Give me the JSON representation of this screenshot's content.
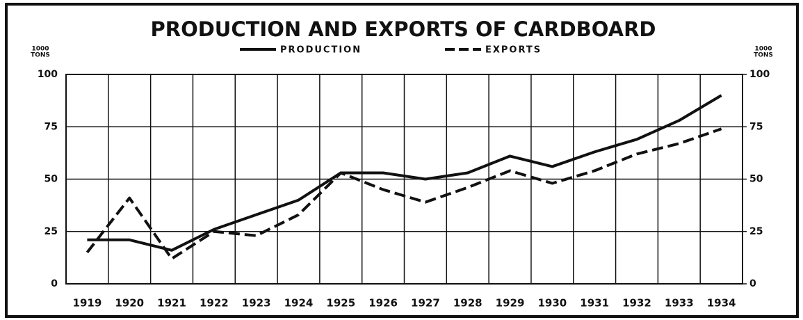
{
  "chart_data": {
    "type": "line",
    "title": "PRODUCTION AND EXPORTS OF CARDBOARD",
    "categories": [
      "1919",
      "1920",
      "1921",
      "1922",
      "1923",
      "1924",
      "1925",
      "1926",
      "1927",
      "1928",
      "1929",
      "1930",
      "1931",
      "1932",
      "1933",
      "1934"
    ],
    "series": [
      {
        "name": "PRODUCTION",
        "color": "#111111",
        "line_style": "solid",
        "values": [
          21,
          21,
          16,
          26,
          33,
          40,
          53,
          53,
          50,
          53,
          61,
          56,
          63,
          69,
          78,
          90
        ]
      },
      {
        "name": "EXPORTS",
        "color": "#111111",
        "line_style": "dashed",
        "values": [
          15,
          41,
          12,
          25,
          23,
          33,
          53,
          45,
          39,
          46,
          54,
          48,
          54,
          62,
          67,
          74
        ]
      }
    ],
    "ylabel": [
      "1000",
      "TONS"
    ],
    "y2label": [
      "1000",
      "TONS"
    ],
    "ylim": [
      0,
      100
    ],
    "yticks": [
      0,
      25,
      50,
      75,
      100
    ],
    "y2lim": [
      0,
      100
    ],
    "y2ticks": [
      0,
      25,
      50,
      75,
      100
    ],
    "grid": true
  }
}
